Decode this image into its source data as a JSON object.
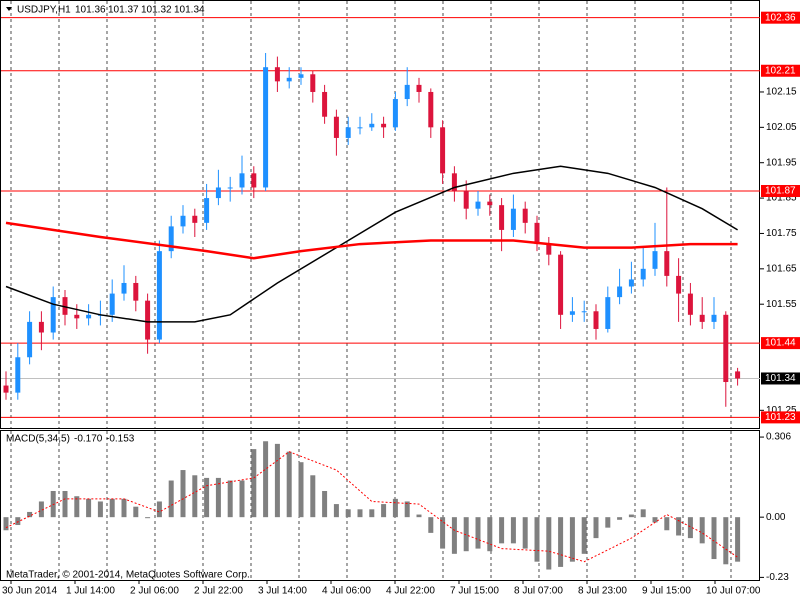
{
  "header": {
    "symbol": "USDJPY,H1"
  },
  "footer": "MetaTrader, © 2001-2014, MetaQuotes Software Corp.",
  "x_labels": [
    "30 Jun 2014",
    "1 Jul 14:00",
    "2 Jul 06:00",
    "2 Jul 22:00",
    "3 Jul 14:00",
    "4 Jul 06:00",
    "4 Jul 22:00",
    "7 Jul 15:00",
    "8 Jul 07:00",
    "8 Jul 23:00",
    "9 Jul 15:00",
    "10 Jul 07:00"
  ],
  "chart_data": [
    {
      "type": "candlestick",
      "up_color": "#1e90ff",
      "down_color": "#dc143c",
      "ylim": [
        101.2,
        102.41
      ],
      "yticks": [
        102.15,
        102.05,
        101.95,
        101.85,
        101.75,
        101.65,
        101.55,
        101.25
      ],
      "levels": [
        102.36,
        102.21,
        101.87,
        101.44,
        101.23
      ],
      "level_color": "#ff0000",
      "candles": [
        [
          101.32,
          101.36,
          101.28,
          101.3
        ],
        [
          101.3,
          101.44,
          101.28,
          101.4
        ],
        [
          101.4,
          101.53,
          101.38,
          101.5
        ],
        [
          101.5,
          101.53,
          101.42,
          101.47
        ],
        [
          101.47,
          101.6,
          101.45,
          101.57
        ],
        [
          101.57,
          101.59,
          101.49,
          101.52
        ],
        [
          101.52,
          101.55,
          101.48,
          101.51
        ],
        [
          101.51,
          101.55,
          101.49,
          101.52
        ],
        [
          101.52,
          101.56,
          101.49,
          101.52
        ],
        [
          101.52,
          101.62,
          101.5,
          101.58
        ],
        [
          101.58,
          101.66,
          101.56,
          101.61
        ],
        [
          101.61,
          101.63,
          101.53,
          101.56
        ],
        [
          101.56,
          101.58,
          101.41,
          101.45
        ],
        [
          101.45,
          101.73,
          101.44,
          101.7
        ],
        [
          101.7,
          101.8,
          101.68,
          101.77
        ],
        [
          101.77,
          101.83,
          101.75,
          101.8
        ],
        [
          101.8,
          101.82,
          101.74,
          101.78
        ],
        [
          101.78,
          101.89,
          101.76,
          101.85
        ],
        [
          101.85,
          101.93,
          101.83,
          101.88
        ],
        [
          101.88,
          101.91,
          101.84,
          101.88
        ],
        [
          101.88,
          101.97,
          101.86,
          101.92
        ],
        [
          101.92,
          101.94,
          101.85,
          101.88
        ],
        [
          101.88,
          102.26,
          101.87,
          102.22
        ],
        [
          102.22,
          102.25,
          102.15,
          102.18
        ],
        [
          102.18,
          102.22,
          102.16,
          102.19
        ],
        [
          102.19,
          102.22,
          102.17,
          102.2
        ],
        [
          102.2,
          102.21,
          102.12,
          102.15
        ],
        [
          102.15,
          102.17,
          102.06,
          102.08
        ],
        [
          102.08,
          102.1,
          101.97,
          102.02
        ],
        [
          102.02,
          102.08,
          102.0,
          102.05
        ],
        [
          102.05,
          102.08,
          102.03,
          102.05
        ],
        [
          102.05,
          102.09,
          102.04,
          102.06
        ],
        [
          102.06,
          102.08,
          102.02,
          102.05
        ],
        [
          102.05,
          102.15,
          102.04,
          102.13
        ],
        [
          102.13,
          102.22,
          102.11,
          102.17
        ],
        [
          102.17,
          102.19,
          102.12,
          102.15
        ],
        [
          102.15,
          102.16,
          102.02,
          102.05
        ],
        [
          102.05,
          102.07,
          101.89,
          101.92
        ],
        [
          101.92,
          101.94,
          101.84,
          101.87
        ],
        [
          101.87,
          101.9,
          101.79,
          101.82
        ],
        [
          101.82,
          101.87,
          101.8,
          101.84
        ],
        [
          101.84,
          101.86,
          101.8,
          101.83
        ],
        [
          101.83,
          101.85,
          101.7,
          101.76
        ],
        [
          101.76,
          101.86,
          101.74,
          101.82
        ],
        [
          101.82,
          101.84,
          101.75,
          101.78
        ],
        [
          101.78,
          101.8,
          101.7,
          101.72
        ],
        [
          101.72,
          101.74,
          101.66,
          101.69
        ],
        [
          101.69,
          101.7,
          101.48,
          101.52
        ],
        [
          101.52,
          101.57,
          101.5,
          101.53
        ],
        [
          101.53,
          101.56,
          101.5,
          101.53
        ],
        [
          101.53,
          101.55,
          101.45,
          101.48
        ],
        [
          101.48,
          101.6,
          101.47,
          101.57
        ],
        [
          101.57,
          101.65,
          101.55,
          101.6
        ],
        [
          101.6,
          101.67,
          101.58,
          101.62
        ],
        [
          101.62,
          101.71,
          101.6,
          101.65
        ],
        [
          101.65,
          101.78,
          101.63,
          101.7
        ],
        [
          101.7,
          101.88,
          101.6,
          101.63
        ],
        [
          101.63,
          101.68,
          101.5,
          101.58
        ],
        [
          101.58,
          101.61,
          101.49,
          101.52
        ],
        [
          101.52,
          101.57,
          101.48,
          101.5
        ],
        [
          101.5,
          101.57,
          101.48,
          101.52
        ],
        [
          101.52,
          101.53,
          101.26,
          101.33
        ],
        [
          101.36,
          101.37,
          101.32,
          101.34
        ]
      ],
      "moving_averages": [
        {
          "color": "#000000",
          "index": [
            0,
            4,
            8,
            12,
            16,
            19,
            23,
            28,
            33,
            38,
            43,
            47,
            51,
            55,
            59,
            62
          ],
          "values": [
            101.6,
            101.55,
            101.52,
            101.5,
            101.5,
            101.52,
            101.61,
            101.71,
            101.81,
            101.88,
            101.92,
            101.94,
            101.92,
            101.88,
            101.82,
            101.76
          ]
        },
        {
          "color": "#ff0000",
          "index": [
            0,
            8,
            17,
            21,
            25,
            30,
            36,
            43,
            49,
            53,
            58,
            62
          ],
          "values": [
            101.78,
            101.74,
            101.7,
            101.68,
            101.7,
            101.72,
            101.73,
            101.73,
            101.71,
            101.71,
            101.72,
            101.72
          ]
        }
      ]
    },
    {
      "type": "bar",
      "title": "MACD(5,34,5)",
      "color": "#808080",
      "signal_color": "#ff0000",
      "readout": [
        {
          "value": -0.17,
          "label": "-0.170"
        },
        -0.153
      ],
      "ylim": [
        -0.24,
        0.333
      ],
      "yticks": [
        0.306,
        {
          "value": 0,
          "label": "0.00"
        },
        -0.23
      ],
      "values": [
        -0.05,
        -0.03,
        0.02,
        0.06,
        0.1,
        0.1,
        0.08,
        0.07,
        0.06,
        0.07,
        0.07,
        0.04,
        0.0,
        0.06,
        0.14,
        0.18,
        0.16,
        0.15,
        0.15,
        0.14,
        0.14,
        0.26,
        0.29,
        0.28,
        0.25,
        0.21,
        0.16,
        0.1,
        0.05,
        0.03,
        0.03,
        0.03,
        0.05,
        0.07,
        0.06,
        0.01,
        -0.06,
        -0.12,
        -0.14,
        -0.13,
        -0.12,
        -0.13,
        -0.1,
        -0.1,
        -0.12,
        -0.17,
        -0.2,
        -0.19,
        -0.17,
        -0.14,
        -0.08,
        -0.04,
        -0.01,
        0.01,
        0.03,
        -0.02,
        -0.05,
        -0.07,
        -0.08,
        -0.1,
        -0.16,
        -0.18,
        -0.17
      ],
      "signal": {
        "index": [
          0,
          5,
          10,
          13,
          17,
          21,
          24,
          28,
          31,
          35,
          38,
          42,
          46,
          49,
          53,
          56,
          59,
          62
        ],
        "values": [
          -0.04,
          0.07,
          0.07,
          0.02,
          0.12,
          0.15,
          0.25,
          0.18,
          0.06,
          0.05,
          -0.05,
          -0.12,
          -0.13,
          -0.17,
          -0.08,
          0.01,
          -0.06,
          -0.153
        ]
      }
    }
  ]
}
